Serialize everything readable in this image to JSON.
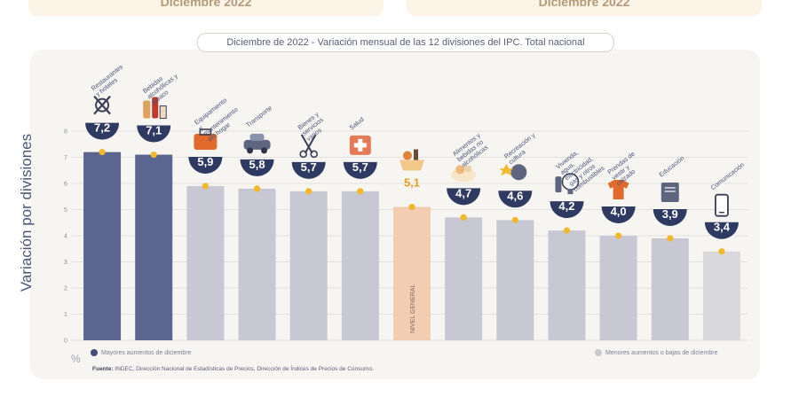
{
  "top_cards": [
    "Diciembre 2022",
    "Diciembre 2022"
  ],
  "chart_data": {
    "type": "bar",
    "title": "Diciembre de 2022 - Variación mensual de las 12 divisiones del IPC. Total nacional",
    "ylabel": "Variación por divisiones",
    "yunit": "%",
    "ylim": [
      0,
      8
    ],
    "yticks": [
      0,
      1,
      2,
      3,
      4,
      5,
      6,
      7,
      8
    ],
    "grid": true,
    "categories": [
      "Restaurantes y hoteles",
      "Bebidas alcohólicas y tabaco",
      "Equipamiento y mantenimiento del hogar",
      "Transporte",
      "Bienes y servicios varios",
      "Salud",
      "NIVEL GENERAL",
      "Alimentos y bebidas no alcohólicas",
      "Recreación y cultura",
      "Vivienda, agua, electricidad, gas y otros combustibles",
      "Prendas de vestir y calzado",
      "Educación",
      "Comunicación"
    ],
    "values": [
      7.2,
      7.1,
      5.9,
      5.8,
      5.7,
      5.7,
      5.1,
      4.7,
      4.6,
      4.2,
      4.0,
      3.9,
      3.4
    ],
    "value_labels": [
      "7,2",
      "7,1",
      "5,9",
      "5,8",
      "5,7",
      "5,7",
      "5,1",
      "4,7",
      "4,6",
      "4,2",
      "4,0",
      "3,9",
      "3,4"
    ],
    "groups": [
      "mayor",
      "mayor",
      "medio",
      "medio",
      "medio",
      "medio",
      "general",
      "medio",
      "medio",
      "medio",
      "medio",
      "medio",
      "menor"
    ],
    "colors": {
      "mayor": "#5a6690",
      "medio": "#c7c8d4",
      "general": "#f3cdb2",
      "menor": "#d9d9de",
      "grid": "#e3e1de",
      "marker": "#f2b82a",
      "badge": "#2f3a63"
    },
    "legend": [
      {
        "label": "Mayores aumentos de diciembre",
        "color": "#414c78"
      },
      {
        "label": "Menores aumentos o bajas de diciembre",
        "color": "#c9c9cf"
      }
    ]
  },
  "icons": [
    "cutlery-icon",
    "bottle-icon",
    "toolbox-icon",
    "car-icon",
    "scissors-icon",
    "medical-cross-icon",
    "groceries-icon",
    "food-plate-icon",
    "music-icon",
    "lightbulb-icon",
    "tshirt-icon",
    "book-icon",
    "phone-icon"
  ],
  "source": {
    "label": "Fuente:",
    "text": "INDEC, Dirección Nacional de Estadísticas de Precios, Dirección de Índices de Precios de Consumo."
  }
}
